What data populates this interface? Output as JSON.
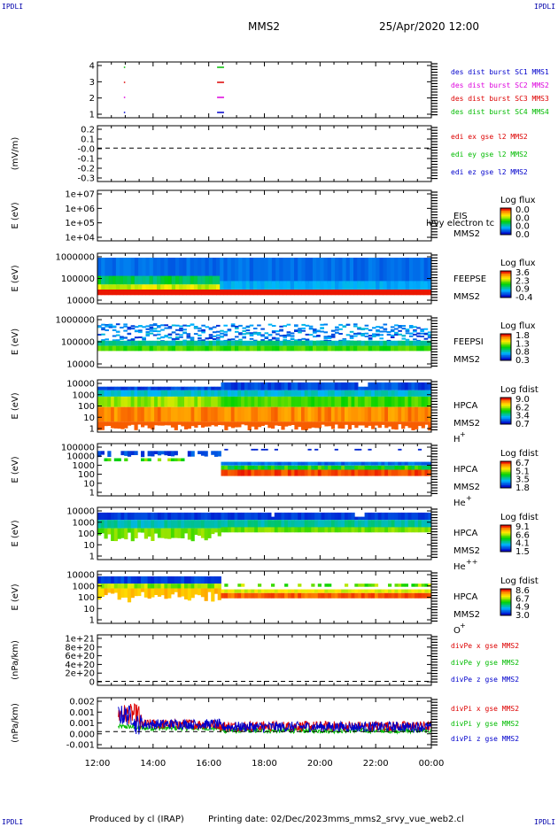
{
  "header": {
    "corner_label": "IPDLI",
    "spacecraft": "MMS2",
    "datetime": "25/Apr/2020 12:00"
  },
  "footer": {
    "produced_by": "Produced by cl (IRAP)",
    "printing_date": "Printing date: 02/Dec/2023",
    "filename": "mms_mms2_srvy_vue_web2.cl"
  },
  "x_axis": {
    "tick_labels": [
      "12:00",
      "14:00",
      "16:00",
      "18:00",
      "20:00",
      "22:00",
      "00:00"
    ],
    "tick_hours": [
      12,
      14,
      16,
      18,
      20,
      22,
      24
    ]
  },
  "colors": {
    "mms1": "#0000cc",
    "mms2": "#dd00dd",
    "mms3": "#dd0000",
    "mms4": "#00bb00",
    "x_comp": "#dd0000",
    "y_comp": "#00bb00",
    "z_comp": "#0000cc"
  },
  "chart_data": [
    {
      "id": "burst",
      "type": "scatter",
      "ylabel": "",
      "y_ticks": [
        "4",
        "3",
        "2",
        "1"
      ],
      "legend": [
        {
          "text": "des dist burst SC1 MMS1",
          "color": "#0000cc"
        },
        {
          "text": "des dist burst SC2 MMS2",
          "color": "#dd00dd"
        },
        {
          "text": "des dist burst SC3 MMS3",
          "color": "#dd0000"
        },
        {
          "text": "des dist burst SC4 MMS4",
          "color": "#00bb00"
        }
      ],
      "segments": [
        {
          "sc": 4,
          "start": 12.95,
          "end": 12.98
        },
        {
          "sc": 4,
          "start": 16.3,
          "end": 16.55
        },
        {
          "sc": 3,
          "start": 12.95,
          "end": 12.98
        },
        {
          "sc": 3,
          "start": 16.3,
          "end": 16.55
        },
        {
          "sc": 2,
          "start": 12.95,
          "end": 12.98
        },
        {
          "sc": 2,
          "start": 16.3,
          "end": 16.55
        },
        {
          "sc": 1,
          "start": 12.95,
          "end": 12.98
        },
        {
          "sc": 1,
          "start": 16.3,
          "end": 16.55
        }
      ]
    },
    {
      "id": "edi",
      "type": "line",
      "ylabel": "(mV/m)",
      "y_ticks": [
        "0.2",
        "0.1",
        "-0.0",
        "-0.1",
        "-0.2",
        "-0.3"
      ],
      "ylim": [
        -0.3,
        0.2
      ],
      "legend": [
        {
          "text": "edi ex gse l2 MMS2",
          "color": "#dd0000"
        },
        {
          "text": "edi ey gse l2 MMS2",
          "color": "#00bb00"
        },
        {
          "text": "edi ez gse l2 MMS2",
          "color": "#0000cc"
        }
      ]
    },
    {
      "id": "eis",
      "type": "heatmap",
      "ylabel": "E (eV)",
      "y_ticks": [
        "1e+07",
        "1e+06",
        "1e+05",
        "1e+04"
      ],
      "instrument": "EIS",
      "sc_label": "MMS2",
      "overlay_text": "lvvy electron tc",
      "cbar_title": "Log flux",
      "cbar_ticks": [
        "0.0",
        "0.0",
        "0.0",
        "0.0"
      ]
    },
    {
      "id": "feepse",
      "type": "heatmap",
      "ylabel": "E (eV)",
      "y_ticks": [
        "1000000",
        "100000",
        "10000"
      ],
      "instrument": "FEEPSE",
      "sc_label": "MMS2",
      "cbar_title": "Log flux",
      "cbar_ticks": [
        "3.6",
        "2.3",
        "0.9",
        "-0.4"
      ]
    },
    {
      "id": "feepsi",
      "type": "heatmap",
      "ylabel": "E (eV)",
      "y_ticks": [
        "1000000",
        "100000",
        "10000"
      ],
      "instrument": "FEEPSI",
      "sc_label": "MMS2",
      "cbar_title": "Log flux",
      "cbar_ticks": [
        "1.8",
        "1.3",
        "0.8",
        "0.3"
      ]
    },
    {
      "id": "hpca_h",
      "type": "heatmap",
      "ylabel": "E (eV)",
      "y_ticks": [
        "10000",
        "1000",
        "100",
        "10",
        "1"
      ],
      "instrument": "HPCA",
      "sc_label": "MMS2",
      "species": "H",
      "charge": "+",
      "cbar_title": "Log fdist",
      "cbar_ticks": [
        "9.0",
        "6.2",
        "3.4",
        "0.7"
      ]
    },
    {
      "id": "hpca_he",
      "type": "heatmap",
      "ylabel": "E (eV)",
      "y_ticks": [
        "100000",
        "10000",
        "1000",
        "100",
        "10",
        "1"
      ],
      "instrument": "HPCA",
      "sc_label": "MMS2",
      "species": "He",
      "charge": "+",
      "cbar_title": "Log fdist",
      "cbar_ticks": [
        "6.7",
        "5.1",
        "3.5",
        "1.8"
      ]
    },
    {
      "id": "hpca_hepp",
      "type": "heatmap",
      "ylabel": "E (eV)",
      "y_ticks": [
        "10000",
        "1000",
        "100",
        "10",
        "1"
      ],
      "instrument": "HPCA",
      "sc_label": "MMS2",
      "species": "He",
      "charge": "++",
      "cbar_title": "Log fdist",
      "cbar_ticks": [
        "9.1",
        "6.6",
        "4.1",
        "1.5"
      ]
    },
    {
      "id": "hpca_o",
      "type": "heatmap",
      "ylabel": "E (eV)",
      "y_ticks": [
        "10000",
        "1000",
        "100",
        "10",
        "1"
      ],
      "instrument": "HPCA",
      "sc_label": "MMS2",
      "species": "O",
      "charge": "+",
      "cbar_title": "Log fdist",
      "cbar_ticks": [
        "8.6",
        "6.7",
        "4.9",
        "3.0"
      ]
    },
    {
      "id": "divpe",
      "type": "line",
      "ylabel": "(nPa/km)",
      "y_ticks": [
        "1e+21",
        "8e+20",
        "6e+20",
        "4e+20",
        "2e+20",
        "0"
      ],
      "legend": [
        {
          "text": "divPe x gse MMS2",
          "color": "#dd0000"
        },
        {
          "text": "divPe y gse MMS2",
          "color": "#00bb00"
        },
        {
          "text": "divPe z gse MMS2",
          "color": "#0000cc"
        }
      ]
    },
    {
      "id": "divpi",
      "type": "line",
      "ylabel": "(nPa/km)",
      "y_ticks": [
        "0.002",
        "0.001",
        "0.001",
        "0.000",
        "-0.001"
      ],
      "ylim": [
        -0.0012,
        0.0022
      ],
      "legend": [
        {
          "text": "divPi x gse MMS2",
          "color": "#dd0000"
        },
        {
          "text": "divPi y gse MMS2",
          "color": "#00bb00"
        },
        {
          "text": "divPi z gse MMS2",
          "color": "#0000cc"
        }
      ]
    }
  ]
}
